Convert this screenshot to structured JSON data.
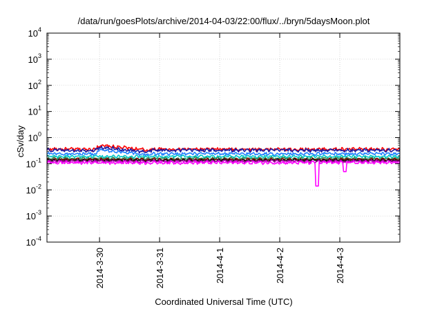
{
  "chart_data": {
    "type": "line",
    "title": "/data/run/goesPlots/archive/2014-04-03/22:00/flux/../bryn/5daysMoon.plot",
    "xlabel": "Coordinated Universal Time (UTC)",
    "ylabel": "cSv/day",
    "y_scale": "log",
    "ylim": [
      0.0001,
      10000
    ],
    "y_ticks": [
      {
        "base": "10",
        "exp": "4",
        "value": 10000
      },
      {
        "base": "10",
        "exp": "3",
        "value": 1000
      },
      {
        "base": "10",
        "exp": "2",
        "value": 100
      },
      {
        "base": "10",
        "exp": "1",
        "value": 10
      },
      {
        "base": "10",
        "exp": "0",
        "value": 1
      },
      {
        "base": "10",
        "exp": "-1",
        "value": 0.1
      },
      {
        "base": "10",
        "exp": "-2",
        "value": 0.01
      },
      {
        "base": "10",
        "exp": "-3",
        "value": 0.001
      },
      {
        "base": "10",
        "exp": "-4",
        "value": 0.0001
      }
    ],
    "xlim": [
      "2014-03-29 03:00",
      "2014-04-04 00:00"
    ],
    "x_ticks": [
      {
        "label": "2014-3-30",
        "date": "2014-03-30"
      },
      {
        "label": "2014-3-31",
        "date": "2014-03-31"
      },
      {
        "label": "2014-4-1",
        "date": "2014-04-01"
      },
      {
        "label": "2014-4-2",
        "date": "2014-04-02"
      },
      {
        "label": "2014-4-3",
        "date": "2014-04-03"
      }
    ],
    "grid": true,
    "series": [
      {
        "color": "#ff0000",
        "base": 0.36,
        "noise": 0.12,
        "features": [
          {
            "from": "2014-03-29 23:00",
            "to": "2014-03-30 20:00",
            "value": 0.5
          }
        ]
      },
      {
        "color": "#1a1aa0",
        "base": 0.33,
        "noise": 0.12,
        "features": [
          {
            "from": "2014-03-29 23:00",
            "to": "2014-03-30 20:00",
            "value": 0.42
          }
        ]
      },
      {
        "color": "#2080ff",
        "base": 0.24,
        "noise": 0.1,
        "features": [
          {
            "from": "2014-03-29 23:00",
            "to": "2014-03-30 20:00",
            "value": 0.34
          }
        ]
      },
      {
        "color": "#00c8c8",
        "base": 0.19,
        "noise": 0.08,
        "features": []
      },
      {
        "color": "#2e8b57",
        "base": 0.16,
        "noise": 0.08,
        "features": []
      },
      {
        "color": "#8b0000",
        "base": 0.145,
        "noise": 0.08,
        "features": []
      },
      {
        "color": "#111111",
        "base": 0.135,
        "noise": 0.08,
        "features": []
      },
      {
        "color": "#aa00aa",
        "base": 0.125,
        "noise": 0.08,
        "features": []
      },
      {
        "color": "#ff00ff",
        "base": 0.11,
        "noise": 0.1,
        "dips": [
          {
            "at": "2014-04-02 15:00",
            "value": 0.014
          },
          {
            "at": "2014-04-03 02:00",
            "value": 0.05
          }
        ]
      }
    ]
  }
}
